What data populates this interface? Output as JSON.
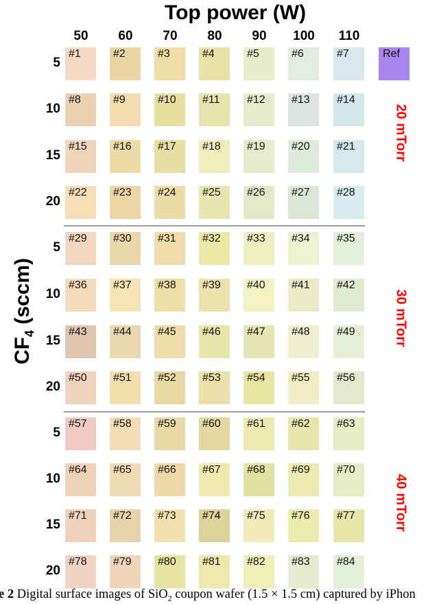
{
  "figure": {
    "title": "Top power (W)",
    "columns": [
      "50",
      "60",
      "70",
      "80",
      "90",
      "100",
      "110"
    ],
    "y_label_main": "CF",
    "y_label_sub": "4",
    "y_label_rest": " (sccm)",
    "groups": [
      {
        "pressure": "20 mTorr",
        "rows": [
          "5",
          "10",
          "15",
          "20"
        ]
      },
      {
        "pressure": "30 mTorr",
        "rows": [
          "5",
          "10",
          "15",
          "20"
        ]
      },
      {
        "pressure": "40 mTorr",
        "rows": [
          "5",
          "10",
          "15",
          "20"
        ]
      }
    ],
    "reference": {
      "label": "Ref",
      "color": "#a986ee"
    },
    "swatch_colors": [
      [
        "#f5d8c4",
        "#ecd5a4",
        "#f0dca6",
        "#e9e2a6",
        "#e8ecc8",
        "#e3ece2",
        "#d6e8ea"
      ],
      [
        "#eed1b2",
        "#f3dcae",
        "#e8e0a0",
        "#e6e4ac",
        "#e6ecc8",
        "#dde3de",
        "#d3e6ea"
      ],
      [
        "#eed5b8",
        "#eedca8",
        "#e8e0a2",
        "#f0ecbc",
        "#e6ecca",
        "#dfe9dc",
        "#d6e8ec"
      ],
      [
        "#f5deb8",
        "#ecd6a6",
        "#ecdca8",
        "#e8e6b0",
        "#e2e9c6",
        "#dce6d6",
        "#d8eeee"
      ],
      [
        "#f3d7c0",
        "#ebd6aa",
        "#efdcaa",
        "#ece8a8",
        "#eeeec0",
        "#eef2d0",
        "#e4eedc"
      ],
      [
        "#f3dbbb",
        "#f6e4b4",
        "#ece0a8",
        "#ebe2ae",
        "#f3f2c4",
        "#e9ebc6",
        "#e2ead0"
      ],
      [
        "#dfc4ae",
        "#ecd8ae",
        "#efdcaa",
        "#e8e6aa",
        "#e4e4b4",
        "#eff0ce",
        "#e6efd6"
      ],
      [
        "#f1d2bd",
        "#f3dfae",
        "#e8d8a2",
        "#ebe0aa",
        "#e8e6a4",
        "#f0eec2",
        "#e2e8cc"
      ],
      [
        "#f1cbc1",
        "#f3dcb4",
        "#e8d8a6",
        "#e4d8a0",
        "#eeeab4",
        "#e8e6ac",
        "#e8ecc4"
      ],
      [
        "#efd1b8",
        "#f0dbb4",
        "#eed8a8",
        "#f1eab0",
        "#e2e2a2",
        "#ecebb4",
        "#e6ecc6"
      ],
      [
        "#f0d2ba",
        "#e8d4ac",
        "#f3e0b0",
        "#dcd398",
        "#f2eab8",
        "#ececae",
        "#e6e6a8"
      ],
      [
        "#f3d4c4",
        "#f2d5b8",
        "#e6e4a0",
        "#eee8ac",
        "#f1efb8",
        "#e6ead0",
        "#e4f0d8"
      ]
    ],
    "pressure_color": "#ff0000"
  },
  "caption": {
    "bold": "e 2",
    "text1": " Digital surface images of SiO",
    "sub": "2",
    "text2": " coupon wafer (1.5 × 1.5 cm) captured by iPhon"
  }
}
